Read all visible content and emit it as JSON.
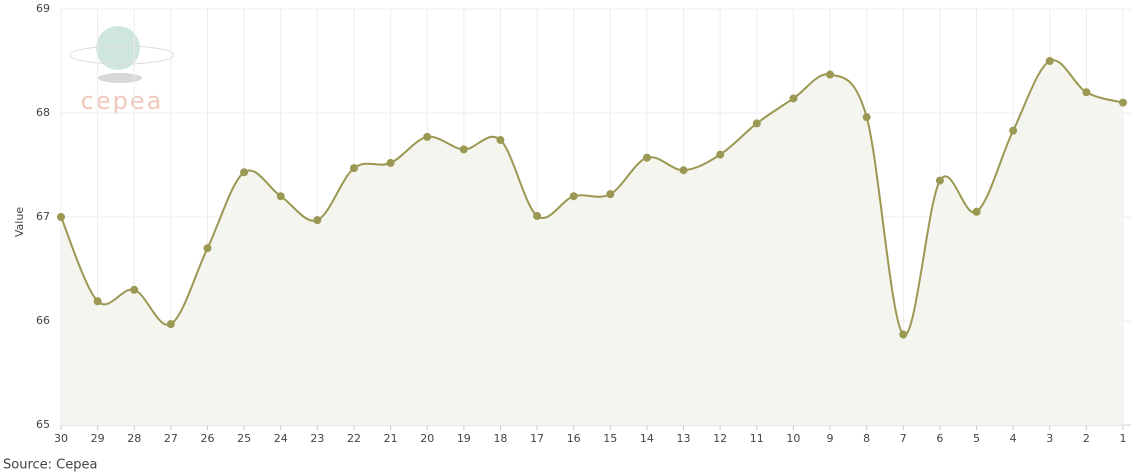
{
  "chart_data": {
    "type": "line",
    "logo_text": "cepea",
    "y_label": "Value",
    "source": "Source: Cepea",
    "categories": [
      "30",
      "29",
      "28",
      "27",
      "26",
      "25",
      "24",
      "23",
      "22",
      "21",
      "20",
      "19",
      "18",
      "17",
      "16",
      "15",
      "14",
      "13",
      "12",
      "11",
      "10",
      "9",
      "8",
      "7",
      "6",
      "5",
      "4",
      "3",
      "2",
      "1"
    ],
    "series": [
      {
        "name": "Value",
        "color": "#9a9852",
        "values": [
          67.0,
          66.19,
          66.3,
          65.97,
          66.7,
          67.43,
          67.2,
          66.97,
          67.47,
          67.52,
          67.77,
          67.65,
          67.74,
          67.01,
          67.2,
          67.22,
          67.57,
          67.45,
          67.6,
          67.9,
          68.14,
          68.37,
          67.96,
          65.87,
          67.35,
          67.05,
          67.83,
          68.5,
          68.2,
          68.1
        ]
      }
    ],
    "ylim": [
      65,
      69
    ],
    "yticks": [
      65,
      66,
      67,
      68,
      69
    ],
    "grid": true,
    "area": true
  }
}
